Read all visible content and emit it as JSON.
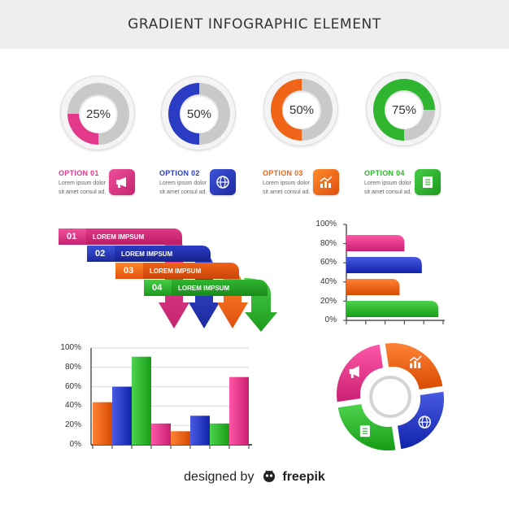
{
  "header": {
    "title": "GRADIENT INFOGRAPHIC ELEMENT"
  },
  "donuts": [
    {
      "label": "25%",
      "value": 25,
      "color": "#e2398a"
    },
    {
      "label": "50%",
      "value": 50,
      "color": "#2a3cc4"
    },
    {
      "label": "50%",
      "value": 50,
      "color": "#f06418"
    },
    {
      "label": "75%",
      "value": 75,
      "color": "#2fb52f"
    }
  ],
  "options": [
    {
      "title": "OPTION 01",
      "desc": "Lorem ipsum dolor sit amet consul ad.",
      "color": "#e2398a",
      "icon": "megaphone-icon"
    },
    {
      "title": "OPTION 02",
      "desc": "Lorem ipsum dolor sit amet consul ad.",
      "color": "#2a3cc4",
      "icon": "globe-icon"
    },
    {
      "title": "OPTION 03",
      "desc": "Lorem ipsum dolor sit amet consul ad.",
      "color": "#f06418",
      "icon": "growth-chart-icon"
    },
    {
      "title": "OPTION 04",
      "desc": "Lorem ipsum dolor sit amet consul ad.",
      "color": "#2fb52f",
      "icon": "document-icon"
    }
  ],
  "steps": [
    {
      "number": "01",
      "label": "LOREM IMPSUM",
      "color": "#e2398a"
    },
    {
      "number": "02",
      "label": "LOREM IMPSUM",
      "color": "#2a3cc4"
    },
    {
      "number": "03",
      "label": "LOREM IMPSUM",
      "color": "#f06418"
    },
    {
      "number": "04",
      "label": "LOREM IMPSUM",
      "color": "#2fb52f"
    }
  ],
  "chart_data": [
    {
      "type": "bar",
      "orientation": "horizontal",
      "y_tick_labels": [
        "100%",
        "80%",
        "60%",
        "40%",
        "20%",
        "0%"
      ],
      "series": [
        {
          "values": [
            60
          ],
          "color": "#e2398a"
        },
        {
          "values": [
            78
          ],
          "color": "#2a3cc4"
        },
        {
          "values": [
            55
          ],
          "color": "#f06418"
        },
        {
          "values": [
            95
          ],
          "color": "#2fb52f"
        }
      ],
      "xlim": [
        0,
        100
      ],
      "ylim": [
        0,
        100
      ],
      "grid": false
    },
    {
      "type": "bar",
      "y_tick_labels": [
        "100%",
        "80%",
        "60%",
        "40%",
        "20%",
        "0%"
      ],
      "values": [
        44,
        60,
        91,
        22,
        14,
        30,
        22,
        70
      ],
      "colors": [
        "#f06418",
        "#2a3cc4",
        "#2fb52f",
        "#e2398a",
        "#f06418",
        "#2a3cc4",
        "#2fb52f",
        "#e2398a"
      ],
      "ylim": [
        0,
        100
      ],
      "grid": true
    },
    {
      "type": "pie",
      "variant": "donut",
      "segments": [
        {
          "value": 25,
          "color": "#f06418",
          "icon": "growth-chart-icon"
        },
        {
          "value": 25,
          "color": "#2a3cc4",
          "icon": "globe-icon"
        },
        {
          "value": 25,
          "color": "#2fb52f",
          "icon": "document-icon"
        },
        {
          "value": 25,
          "color": "#e2398a",
          "icon": "megaphone-icon"
        }
      ]
    }
  ],
  "footer": {
    "prefix": "designed by",
    "brand": "freepik",
    "logo": "freepik-logo-icon"
  }
}
